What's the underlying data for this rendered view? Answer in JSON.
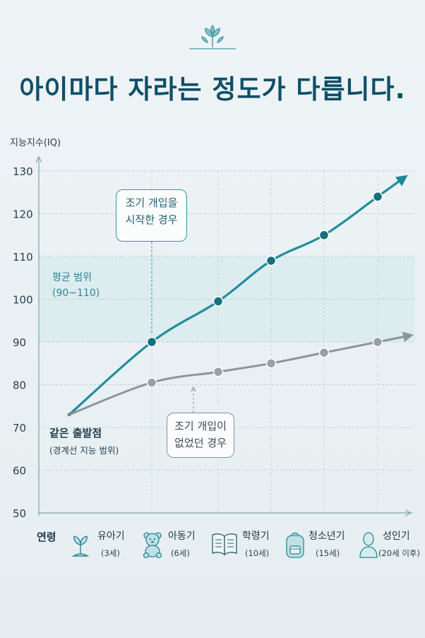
{
  "title": "아이마다 자라는 정도가 다릅니다.",
  "colors": {
    "teal": "#1f8e9c",
    "teal_dark": "#15707d",
    "gray": "#8e9499",
    "band": "#d5e9ec"
  },
  "chart_data": {
    "type": "line",
    "ylabel": "지능지수(IQ)",
    "ylim": [
      50,
      130
    ],
    "yticks": [
      50,
      60,
      70,
      80,
      90,
      100,
      110,
      120,
      130
    ],
    "xlabel": "연령",
    "grid": true,
    "x": [
      "유아기 (3세)",
      "아동기 (6세)",
      "학령기 (10세)",
      "청소년기 (15세)",
      "성인기 (20세 이후)"
    ],
    "start_point": {
      "label": "같은 출발점",
      "sublabel": "(경계선 지능 범위)",
      "value": 73
    },
    "series": [
      {
        "name": "조기 개입을 시작한 경우",
        "color": "#1f8e9c",
        "values": [
          90,
          99.5,
          109,
          115,
          124
        ]
      },
      {
        "name": "조기 개입이 없었던 경우",
        "color": "#8e9499",
        "values": [
          80.5,
          83,
          85,
          87.5,
          90
        ]
      }
    ],
    "band": {
      "label": "평균 범위\n(90~110)",
      "min": 90,
      "max": 110
    }
  },
  "callouts": {
    "early": "조기 개입을\n시작한 경우",
    "none": "조기 개입이\n없었던 경우"
  },
  "stages": [
    {
      "name": "유아기",
      "age": "(3세)",
      "icon": "sprout-icon"
    },
    {
      "name": "아동기",
      "age": "(6세)",
      "icon": "teddy-bear-icon"
    },
    {
      "name": "학령기",
      "age": "(10세)",
      "icon": "open-book-icon"
    },
    {
      "name": "청소년기",
      "age": "(15세)",
      "icon": "backpack-icon"
    },
    {
      "name": "성인기",
      "age": "(20세 이후)",
      "icon": "person-icon"
    }
  ]
}
